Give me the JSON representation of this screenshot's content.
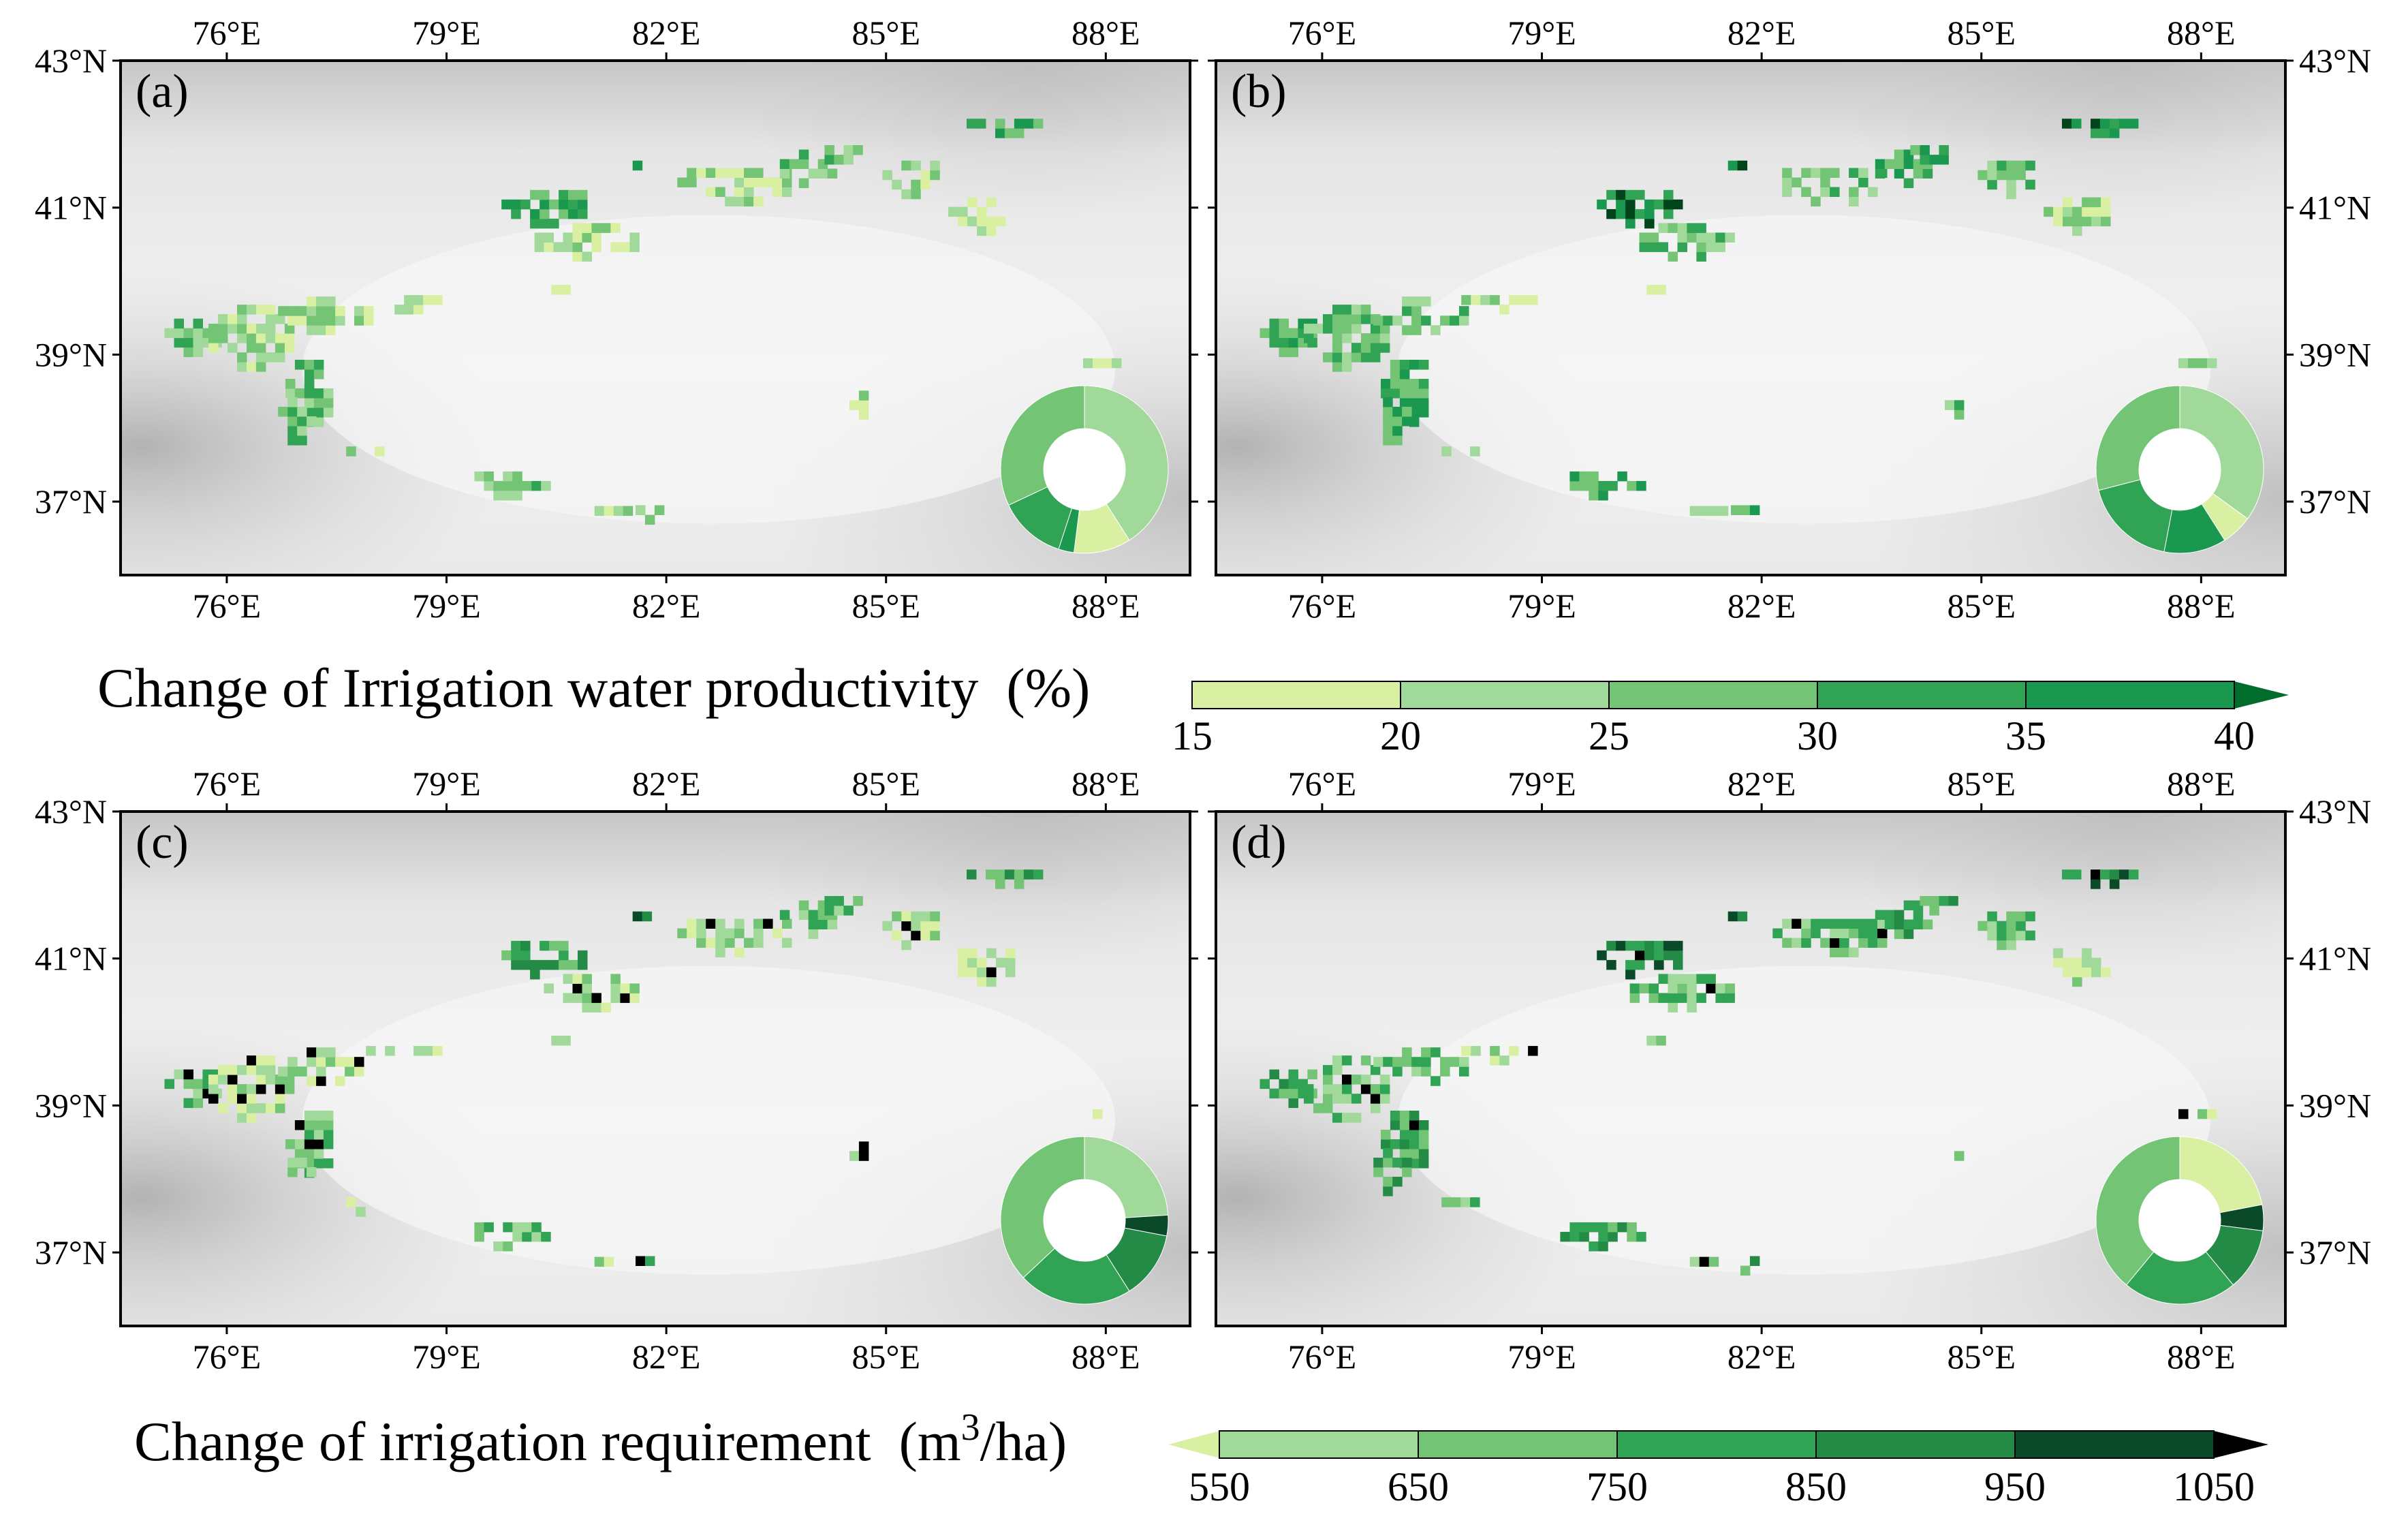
{
  "figure": {
    "panels": [
      {
        "label": "(a)",
        "donut": [
          {
            "cls": 1,
            "pct": 41
          },
          {
            "cls": 0,
            "pct": 11
          },
          {
            "cls": 4,
            "pct": 3
          },
          {
            "cls": 3,
            "pct": 13
          },
          {
            "cls": 2,
            "pct": 32
          }
        ]
      },
      {
        "label": "(b)",
        "donut": [
          {
            "cls": 1,
            "pct": 35
          },
          {
            "cls": 0,
            "pct": 6
          },
          {
            "cls": 4,
            "pct": 12
          },
          {
            "cls": 3,
            "pct": 18
          },
          {
            "cls": 2,
            "pct": 29
          }
        ]
      },
      {
        "label": "(c)",
        "donut": [
          {
            "cls": 1,
            "pct": 24
          },
          {
            "cls": 5,
            "pct": 4
          },
          {
            "cls": 4,
            "pct": 13
          },
          {
            "cls": 3,
            "pct": 22
          },
          {
            "cls": 2,
            "pct": 37
          }
        ]
      },
      {
        "label": "(d)",
        "donut": [
          {
            "cls": 0,
            "pct": 22
          },
          {
            "cls": 5,
            "pct": 5
          },
          {
            "cls": 4,
            "pct": 12
          },
          {
            "cls": 3,
            "pct": 22
          },
          {
            "cls": 2,
            "pct": 39
          }
        ]
      }
    ],
    "lon_ticks": [
      "76°E",
      "79°E",
      "82°E",
      "85°E",
      "88°E"
    ],
    "lat_ticks": [
      "43°N",
      "41°N",
      "39°N",
      "37°N"
    ],
    "colorbar_top": {
      "title": "Change of Irrigation water productivity  (%)",
      "tick_labels": [
        "15",
        "20",
        "25",
        "30",
        "35",
        "40"
      ],
      "colors": [
        "#d9f0a3",
        "#a1d99b",
        "#74c476",
        "#31a354",
        "#1a9850",
        "#006d2c"
      ]
    },
    "colorbar_bottom": {
      "title_main": "Change of irrigation requirement  (m",
      "title_sup": "3",
      "title_tail": "/ha)",
      "tick_labels": [
        "550",
        "650",
        "750",
        "850",
        "950",
        "1050"
      ],
      "colors": [
        "#d9f0a3",
        "#a1d99b",
        "#74c476",
        "#31a354",
        "#238b45",
        "#0b4a28",
        "#000000"
      ]
    }
  }
}
